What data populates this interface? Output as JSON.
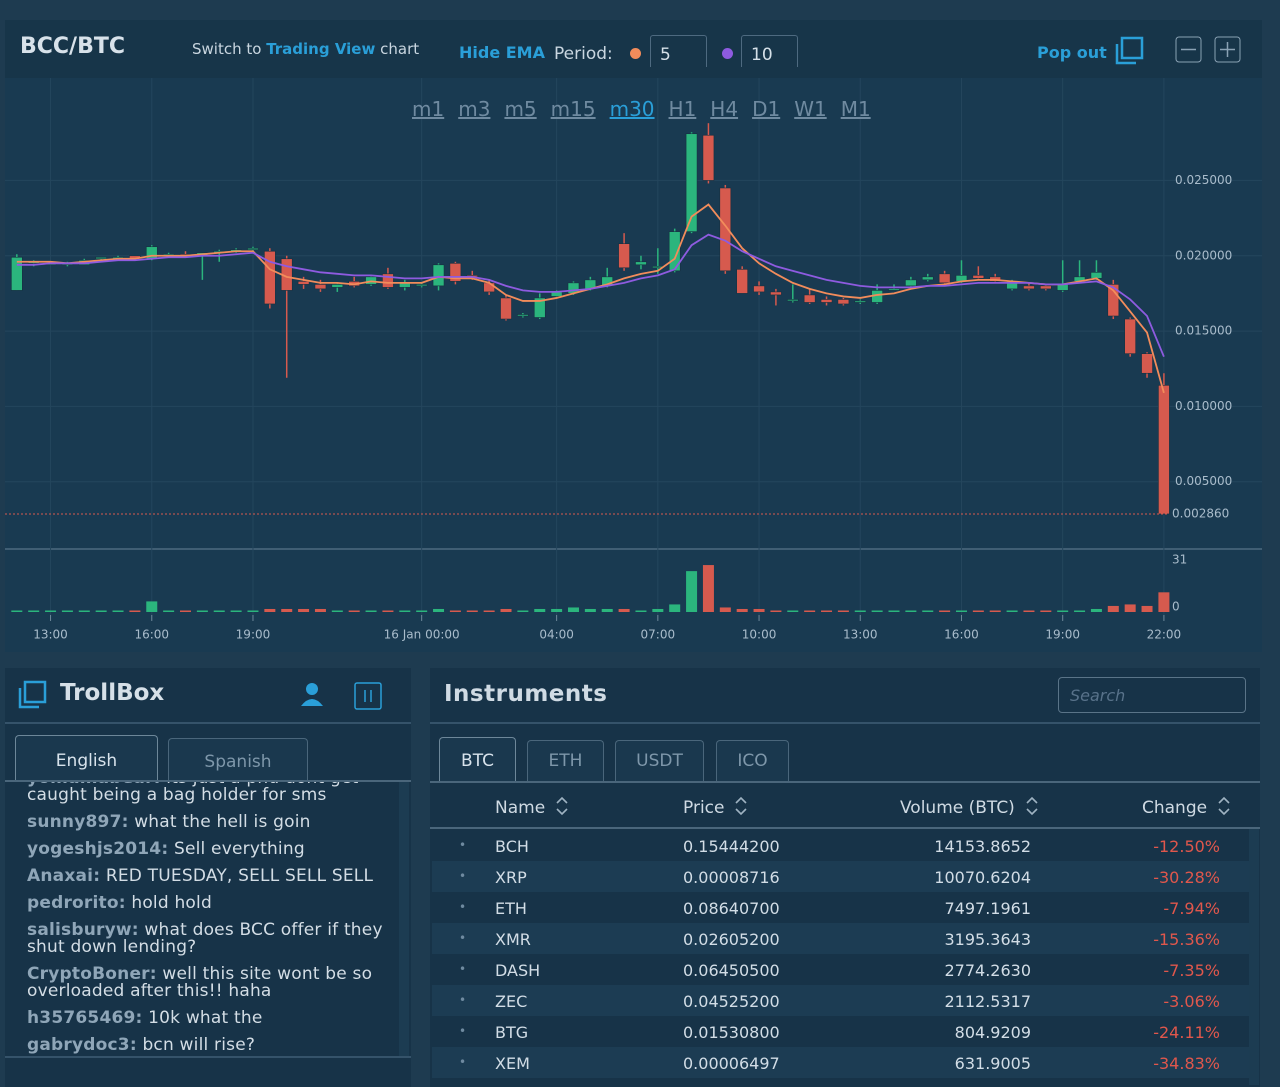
{
  "header": {
    "pair": "BCC/BTC",
    "switch_prefix": "Switch to",
    "switch_link": "Trading View",
    "switch_suffix": "chart",
    "hide_ema": "Hide EMA",
    "period_label": "Period:",
    "pop_out": "Pop out"
  },
  "chart_data": {
    "type": "candlestick",
    "timeframes": [
      "m1",
      "m3",
      "m5",
      "m15",
      "m30",
      "H1",
      "H4",
      "D1",
      "W1",
      "M1"
    ],
    "active_timeframe": 4,
    "x": [
      12,
      12.5,
      13,
      13.5,
      14,
      14.5,
      15,
      15.5,
      16,
      16.5,
      17,
      17.5,
      18,
      18.5,
      19,
      19.5,
      20,
      20.5,
      21,
      21.5,
      22,
      22.5,
      23,
      23.5,
      24,
      24.5,
      25,
      25.5,
      26,
      26.5,
      27,
      27.5,
      28,
      28.5,
      29,
      29.5,
      30,
      30.5,
      31,
      31.5,
      32,
      32.5,
      33,
      33.5,
      34,
      34.5,
      35,
      35.5,
      36,
      36.5,
      37,
      37.5,
      38,
      38.5,
      39,
      39.5,
      40,
      40.5,
      41,
      41.5,
      42,
      42.5,
      43,
      43.5,
      44,
      44.5,
      45,
      45.5,
      46
    ],
    "open": [
      0.0177,
      0.0195,
      0.0195,
      0.0194,
      0.0194,
      0.0198,
      0.0199,
      0.02,
      0.0198,
      0.0201,
      0.0201,
      0.02,
      0.0202,
      0.0203,
      0.0204,
      0.0203,
      0.0198,
      0.0183,
      0.0181,
      0.0179,
      0.0183,
      0.0181,
      0.0188,
      0.0179,
      0.018,
      0.018,
      0.0195,
      0.0187,
      0.0182,
      0.0172,
      0.016,
      0.0159,
      0.0173,
      0.0175,
      0.0178,
      0.018,
      0.0208,
      0.0194,
      0.0192,
      0.019,
      0.0216,
      0.028,
      0.0245,
      0.0191,
      0.018,
      0.0176,
      0.0171,
      0.0174,
      0.0171,
      0.0171,
      0.0169,
      0.0169,
      0.0178,
      0.018,
      0.0184,
      0.0188,
      0.0183,
      0.0187,
      0.0186,
      0.0178,
      0.018,
      0.018,
      0.0177,
      0.0183,
      0.0185,
      0.0181,
      0.0158,
      0.0135,
      0.0114
    ],
    "high": [
      0.0201,
      0.0197,
      0.0196,
      0.0196,
      0.0198,
      0.0199,
      0.02,
      0.02,
      0.0207,
      0.0202,
      0.0203,
      0.0202,
      0.0204,
      0.0205,
      0.0206,
      0.0205,
      0.02,
      0.0186,
      0.0184,
      0.0182,
      0.0186,
      0.0187,
      0.0192,
      0.0184,
      0.0182,
      0.0195,
      0.0196,
      0.019,
      0.0184,
      0.0174,
      0.0162,
      0.0175,
      0.0177,
      0.0183,
      0.0186,
      0.0192,
      0.0215,
      0.02,
      0.0205,
      0.0218,
      0.0282,
      0.0288,
      0.0247,
      0.0193,
      0.0183,
      0.0178,
      0.0181,
      0.0178,
      0.0173,
      0.0172,
      0.0171,
      0.0181,
      0.0181,
      0.0186,
      0.0188,
      0.019,
      0.0197,
      0.0193,
      0.0188,
      0.0184,
      0.0182,
      0.0181,
      0.0197,
      0.0197,
      0.0197,
      0.0184,
      0.0159,
      0.0136,
      0.0122
    ],
    "low": [
      0.0177,
      0.0193,
      0.0194,
      0.0193,
      0.0194,
      0.0197,
      0.0198,
      0.0198,
      0.0197,
      0.02,
      0.0199,
      0.0184,
      0.0196,
      0.0202,
      0.0203,
      0.0165,
      0.0119,
      0.0178,
      0.0176,
      0.0176,
      0.0179,
      0.018,
      0.0178,
      0.0177,
      0.0179,
      0.0177,
      0.0181,
      0.0184,
      0.0174,
      0.0157,
      0.0159,
      0.0158,
      0.0172,
      0.0174,
      0.0177,
      0.0179,
      0.019,
      0.0191,
      0.0188,
      0.0189,
      0.0215,
      0.0248,
      0.0188,
      0.0175,
      0.0174,
      0.0167,
      0.0169,
      0.0168,
      0.0167,
      0.0167,
      0.0168,
      0.0168,
      0.0177,
      0.0179,
      0.0183,
      0.0181,
      0.0182,
      0.0184,
      0.0182,
      0.0177,
      0.0177,
      0.0177,
      0.0176,
      0.0182,
      0.0184,
      0.0158,
      0.0133,
      0.0119,
      0.00286
    ],
    "close": [
      0.0199,
      0.0196,
      0.0195,
      0.0195,
      0.0197,
      0.0199,
      0.0199,
      0.0198,
      0.0206,
      0.0201,
      0.02,
      0.0202,
      0.0203,
      0.0204,
      0.0205,
      0.0168,
      0.0177,
      0.0181,
      0.0178,
      0.0181,
      0.018,
      0.0186,
      0.0179,
      0.0182,
      0.0181,
      0.0194,
      0.0183,
      0.0186,
      0.0176,
      0.0158,
      0.0161,
      0.0172,
      0.0176,
      0.0182,
      0.0184,
      0.0186,
      0.0192,
      0.0196,
      0.0193,
      0.0216,
      0.0281,
      0.025,
      0.019,
      0.0175,
      0.0176,
      0.0174,
      0.0171,
      0.0169,
      0.0169,
      0.0168,
      0.017,
      0.0177,
      0.0178,
      0.0184,
      0.0186,
      0.0182,
      0.0187,
      0.0185,
      0.0183,
      0.0183,
      0.0178,
      0.0178,
      0.0181,
      0.0186,
      0.0189,
      0.016,
      0.0135,
      0.0122,
      0.00286
    ],
    "volume": [
      1,
      1,
      1,
      1,
      1,
      1,
      1,
      1,
      7,
      1,
      1,
      1,
      1,
      1,
      1,
      2,
      2,
      2,
      2,
      1,
      1,
      1,
      1,
      1,
      1,
      2,
      1,
      1,
      1,
      2,
      1,
      2,
      2,
      3,
      2,
      2,
      2,
      1,
      2,
      5,
      27,
      31,
      3,
      2,
      2,
      1,
      1,
      1,
      1,
      1,
      1,
      1,
      1,
      1,
      1,
      1,
      1,
      1,
      1,
      1,
      1,
      1,
      1,
      1,
      2,
      4,
      5,
      4,
      13
    ],
    "ema": [
      {
        "period": 5,
        "color": "#f28c5b",
        "values": [
          0.0196,
          0.0196,
          0.0196,
          0.0195,
          0.0196,
          0.0197,
          0.0198,
          0.0198,
          0.02,
          0.02,
          0.02,
          0.0201,
          0.0202,
          0.0203,
          0.0203,
          0.0191,
          0.0186,
          0.0184,
          0.0182,
          0.0182,
          0.0181,
          0.0183,
          0.0182,
          0.0182,
          0.0182,
          0.0186,
          0.0185,
          0.0185,
          0.0182,
          0.0174,
          0.017,
          0.017,
          0.0172,
          0.0175,
          0.0178,
          0.0181,
          0.0185,
          0.0188,
          0.019,
          0.0198,
          0.0226,
          0.0234,
          0.022,
          0.0205,
          0.0195,
          0.0188,
          0.0182,
          0.0178,
          0.0175,
          0.0173,
          0.0172,
          0.0174,
          0.0175,
          0.0178,
          0.018,
          0.0181,
          0.0183,
          0.0184,
          0.0184,
          0.0183,
          0.0182,
          0.0181,
          0.0181,
          0.0183,
          0.0185,
          0.0177,
          0.0163,
          0.0149,
          0.0109
        ]
      },
      {
        "period": 10,
        "color": "#8e5be0",
        "values": [
          0.0194,
          0.0194,
          0.0195,
          0.0195,
          0.0195,
          0.0196,
          0.0197,
          0.0197,
          0.0198,
          0.0199,
          0.0199,
          0.02,
          0.02,
          0.0201,
          0.0202,
          0.0196,
          0.0193,
          0.0191,
          0.0189,
          0.0188,
          0.0187,
          0.0187,
          0.0186,
          0.0185,
          0.0185,
          0.0186,
          0.0186,
          0.0186,
          0.0184,
          0.018,
          0.0177,
          0.0176,
          0.0176,
          0.0177,
          0.0178,
          0.018,
          0.0182,
          0.0185,
          0.0187,
          0.0191,
          0.0207,
          0.0214,
          0.021,
          0.0203,
          0.0198,
          0.0193,
          0.019,
          0.0187,
          0.0184,
          0.0182,
          0.018,
          0.0179,
          0.0179,
          0.0179,
          0.018,
          0.018,
          0.0181,
          0.0182,
          0.0182,
          0.0182,
          0.0182,
          0.0181,
          0.0181,
          0.0182,
          0.0183,
          0.0179,
          0.0171,
          0.016,
          0.0133
        ]
      }
    ],
    "up_color": "#2bb57d",
    "down_color": "#d65a4e",
    "ylim": [
      0.0006,
      0.0318
    ],
    "yticks": [
      {
        "value": 0.005,
        "label": "0.005000"
      },
      {
        "value": 0.01,
        "label": "0.010000"
      },
      {
        "value": 0.015,
        "label": "0.015000"
      },
      {
        "value": 0.02,
        "label": "0.020000"
      },
      {
        "value": 0.025,
        "label": "0.025000"
      }
    ],
    "last_price": {
      "value": 0.00286,
      "label": "0.002860"
    },
    "xlim": [
      11.65,
      48.7
    ],
    "xticks": [
      {
        "value": 13,
        "label": "13:00"
      },
      {
        "value": 16,
        "label": "16:00"
      },
      {
        "value": 19,
        "label": "19:00"
      },
      {
        "value": 24,
        "label": "16 Jan 00:00"
      },
      {
        "value": 28,
        "label": "04:00"
      },
      {
        "value": 31,
        "label": "07:00"
      },
      {
        "value": 34,
        "label": "10:00"
      },
      {
        "value": 37,
        "label": "13:00"
      },
      {
        "value": 40,
        "label": "16:00"
      },
      {
        "value": 43,
        "label": "19:00"
      },
      {
        "value": 46,
        "label": "22:00"
      }
    ],
    "vlim": [
      0,
      36
    ],
    "vticks": [
      0,
      31
    ],
    "grid": true
  },
  "trollbox": {
    "title": "TrollBox",
    "tabs": [
      "English",
      "Spanish"
    ],
    "messages": [
      {
        "user": "yomamabear:",
        "text": "its just a pnd dont get caught being a bag holder for sms"
      },
      {
        "user": "sunny897:",
        "text": "what the hell is goin"
      },
      {
        "user": "yogeshjs2014:",
        "text": "Sell everything"
      },
      {
        "user": "Anaxai:",
        "text": "RED TUESDAY, SELL SELL SELL"
      },
      {
        "user": "pedrorito:",
        "text": "hold hold"
      },
      {
        "user": "salisburyw:",
        "text": "what does BCC offer if they shut down lending?"
      },
      {
        "user": "CryptoBoner:",
        "text": "well this site wont be so overloaded after this!! haha"
      },
      {
        "user": "h35765469:",
        "text": "10k what the"
      },
      {
        "user": "gabrydoc3:",
        "text": "bcn will rise?"
      }
    ]
  },
  "instruments": {
    "title": "Instruments",
    "search": "Search",
    "tabs": [
      "BTC",
      "ETH",
      "USDT",
      "ICO"
    ],
    "active_tab": 0,
    "columns": [
      "Name",
      "Price",
      "Volume (BTC)",
      "Change"
    ],
    "rows": [
      [
        "BCH",
        "0.15444200",
        "14153.8652",
        "-12.50%"
      ],
      [
        "XRP",
        "0.00008716",
        "10070.6204",
        "-30.28%"
      ],
      [
        "ETH",
        "0.08640700",
        "7497.1961",
        "-7.94%"
      ],
      [
        "XMR",
        "0.02605200",
        "3195.3643",
        "-15.36%"
      ],
      [
        "DASH",
        "0.06450500",
        "2774.2630",
        "-7.35%"
      ],
      [
        "ZEC",
        "0.04525200",
        "2112.5317",
        "-3.06%"
      ],
      [
        "BTG",
        "0.01530800",
        "804.9209",
        "-24.11%"
      ],
      [
        "XEM",
        "0.00006497",
        "631.9005",
        "-34.83%"
      ]
    ]
  }
}
